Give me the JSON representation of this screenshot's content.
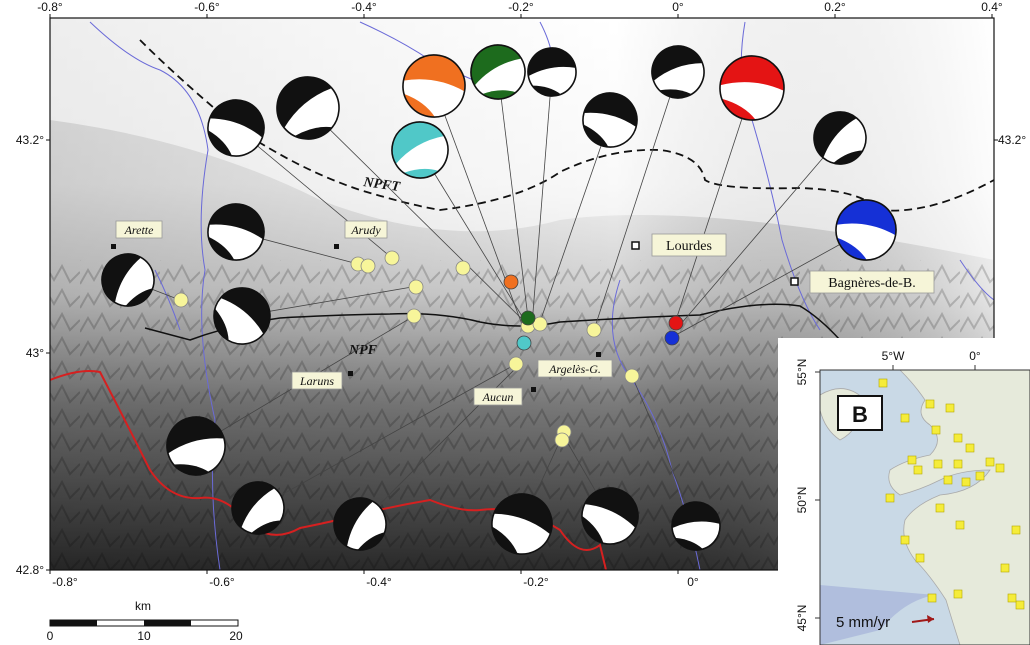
{
  "map": {
    "lon_ticks": [
      "-0.8°",
      "-0.6°",
      "-0.4°",
      "-0.2°",
      "0°",
      "0.2°",
      "0.4°"
    ],
    "lat_ticks_left": [
      "43.2°",
      "43°",
      "42.8°"
    ],
    "lat_ticks_right": [
      "43.2°"
    ],
    "fault_labels": [
      "NPFT",
      "NPF"
    ],
    "towns_italic": [
      "Arette",
      "Arudy",
      "Laruns",
      "Aucun",
      "Argelès-G."
    ],
    "towns_plain": [
      "Lourdes",
      "Bagnères-de-B."
    ],
    "scale": {
      "unit": "km",
      "ticks": [
        "0",
        "10",
        "20"
      ]
    },
    "colors": {
      "orange": "#f07020",
      "green": "#1d6b1d",
      "cyan": "#50c8c8",
      "red": "#e41414",
      "blue": "#1530d6",
      "epicenter": "#f7f59a",
      "border": "#d62020",
      "river": "#6a6ad8"
    }
  },
  "inset": {
    "label": "B",
    "lon_ticks": [
      "5°W",
      "0°"
    ],
    "lat_ticks": [
      "55°N",
      "50°N",
      "45°N"
    ],
    "velocity_label": "5 mm/yr"
  }
}
